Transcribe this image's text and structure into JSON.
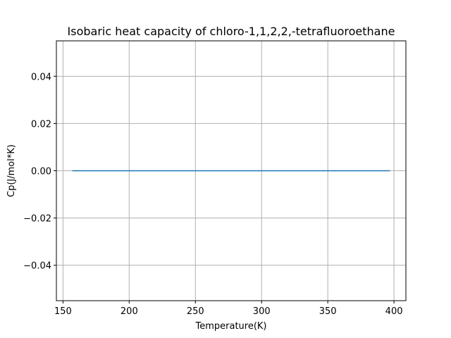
{
  "chart_data": {
    "type": "line",
    "title": "Isobaric heat capacity of chloro-1,1,2,2,-tetrafluoroethane",
    "xlabel": "Temperature(K)",
    "ylabel": "Cp(J/mol*K)",
    "xlim": [
      145,
      409
    ],
    "ylim": [
      -0.055,
      0.055
    ],
    "xticks": [
      150,
      200,
      250,
      300,
      350,
      400
    ],
    "yticks": [
      -0.04,
      -0.02,
      0.0,
      0.02,
      0.04
    ],
    "ytick_labels": [
      "−0.04",
      "−0.02",
      "0.00",
      "0.02",
      "0.04"
    ],
    "grid": true,
    "series": [
      {
        "color": "#1f77b4",
        "x": [
          157,
          397
        ],
        "y": [
          0.0,
          0.0
        ]
      }
    ]
  }
}
